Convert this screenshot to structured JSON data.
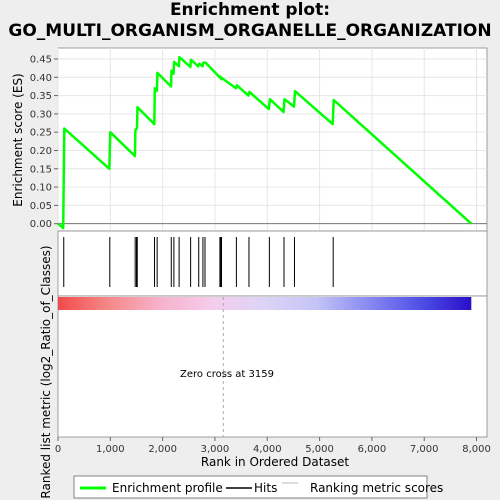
{
  "title_line1": "Enrichment plot:",
  "title_line2": "GO_MULTI_ORGANISM_ORGANELLE_ORGANIZATION",
  "colors": {
    "enrichment_line": "#00ff00",
    "hits": "#000000",
    "zero_line": "#777777",
    "zero_cross": "#aaaaaa",
    "background": "#eeeeee",
    "plot_bg": "#ffffff",
    "bar_gradient": [
      "#f24a4a",
      "#f58a8a",
      "#f7b3cc",
      "#f5ccec",
      "#dcd4f5",
      "#c4c4f7",
      "#8a8af2",
      "#5050e6",
      "#2a0fc7"
    ]
  },
  "chart_data": [
    {
      "type": "line",
      "ylabel": "Enrichment score (ES)",
      "xlim": [
        0,
        8200
      ],
      "ylim": [
        -0.02,
        0.48
      ],
      "y_ticks": [
        0.0,
        0.05,
        0.1,
        0.15,
        0.2,
        0.25,
        0.3,
        0.35,
        0.4,
        0.45
      ],
      "y_tick_labels": [
        "0.00",
        "0.05",
        "0.10",
        "0.15",
        "0.20",
        "0.25",
        "0.30",
        "0.35",
        "0.40",
        "0.45"
      ],
      "grid": true,
      "series": [
        {
          "name": "Enrichment profile",
          "x": [
            0,
            100,
            120,
            980,
            1000,
            1470,
            1480,
            1510,
            1520,
            1840,
            1850,
            1890,
            1900,
            2160,
            2170,
            2210,
            2220,
            2310,
            2320,
            2530,
            2540,
            2680,
            2700,
            2760,
            2780,
            2820,
            3090,
            3100,
            3120,
            3130,
            3400,
            3420,
            3640,
            3660,
            4030,
            4050,
            4310,
            4330,
            4510,
            4530,
            5250,
            5270,
            7900
          ],
          "y": [
            0.0,
            -0.012,
            0.26,
            0.15,
            0.25,
            0.185,
            0.255,
            0.262,
            0.318,
            0.272,
            0.37,
            0.363,
            0.412,
            0.375,
            0.418,
            0.41,
            0.442,
            0.43,
            0.455,
            0.428,
            0.448,
            0.43,
            0.437,
            0.43,
            0.44,
            0.44,
            0.4,
            0.402,
            0.395,
            0.398,
            0.37,
            0.378,
            0.35,
            0.36,
            0.313,
            0.34,
            0.305,
            0.34,
            0.32,
            0.362,
            0.272,
            0.338,
            0.0
          ]
        }
      ]
    },
    {
      "type": "scatter",
      "series": [
        {
          "name": "Hits",
          "x": [
            110,
            990,
            1475,
            1500,
            1515,
            1845,
            1895,
            2165,
            2215,
            2315,
            2535,
            2690,
            2770,
            2810,
            3095,
            3110,
            3125,
            3410,
            3650,
            4040,
            4320,
            4520,
            5260
          ]
        }
      ]
    },
    {
      "type": "area",
      "ylabel": "Ranked list metric (log2_Ratio_of_Classes)",
      "xlabel": "Rank in Ordered Dataset",
      "xlim": [
        0,
        8200
      ],
      "x_ticks": [
        0,
        1000,
        2000,
        3000,
        4000,
        5000,
        6000,
        7000,
        8000
      ],
      "x_tick_labels": [
        "0",
        "1,000",
        "2,000",
        "3,000",
        "4,000",
        "5,000",
        "6,000",
        "7,000",
        "8,000"
      ],
      "annotation": "Zero cross at 3159",
      "zero_cross": 3159,
      "series": [
        {
          "name": "Ranking metric scores",
          "x_end": 7900
        }
      ]
    }
  ],
  "legend": {
    "items": [
      {
        "label": "Enrichment profile",
        "color": "#00ff00",
        "kind": "thick"
      },
      {
        "label": "Hits",
        "color": "#000000",
        "kind": "thin"
      },
      {
        "label": "Ranking metric scores",
        "color": "#bbbbbb",
        "kind": "thin"
      }
    ]
  }
}
